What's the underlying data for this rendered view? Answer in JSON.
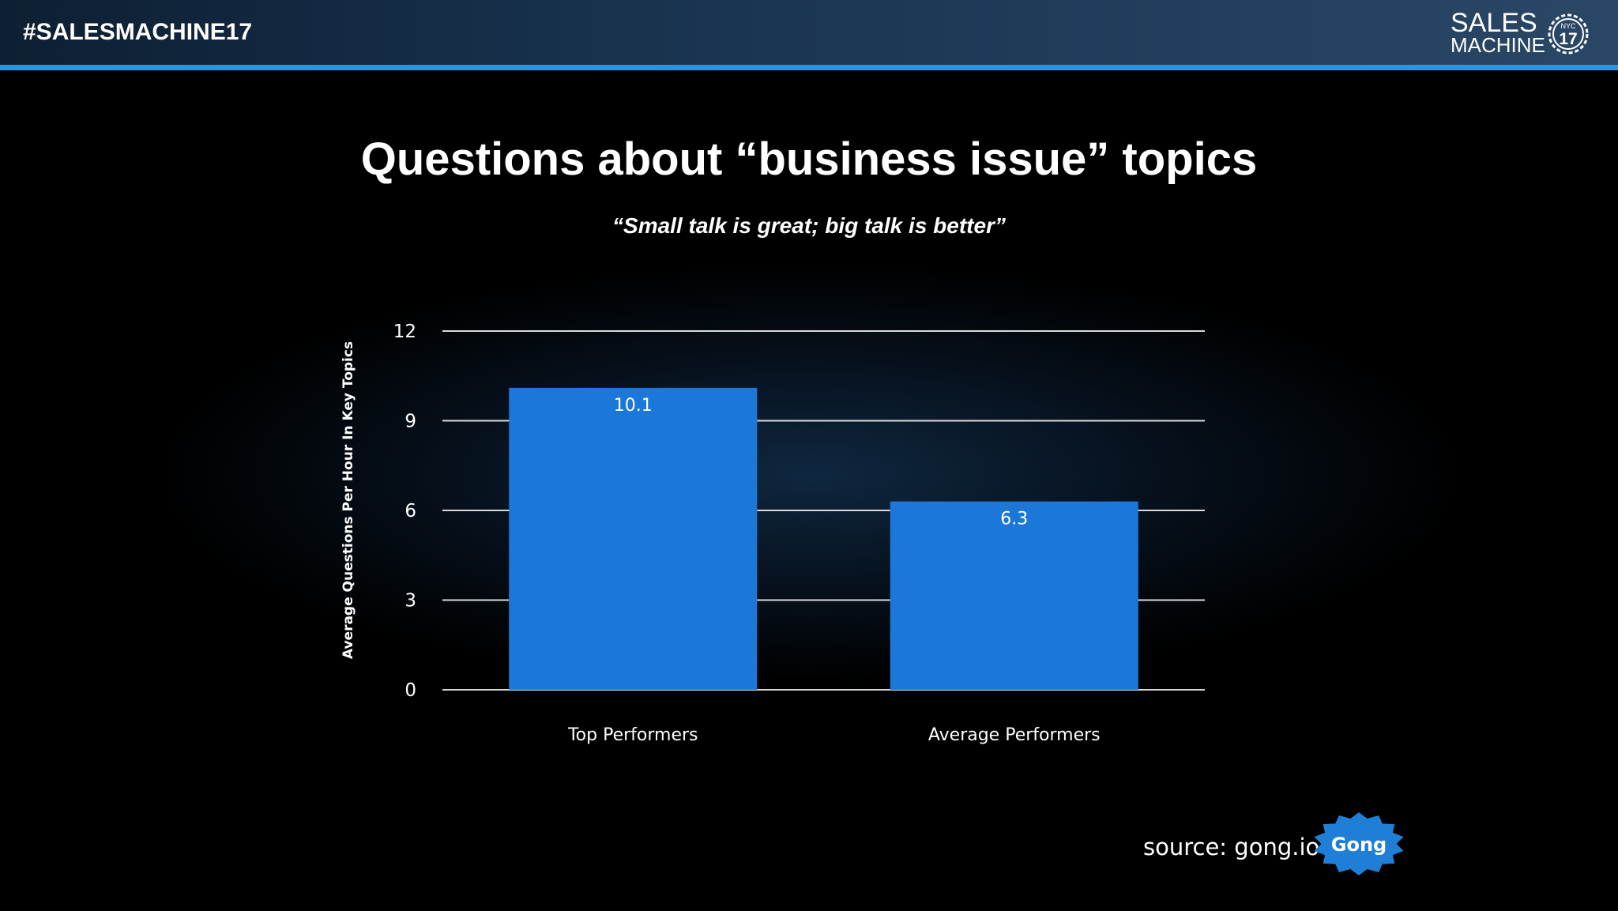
{
  "header": {
    "hashtag": "#SALESMACHINE17",
    "logo": {
      "word1": "SALES",
      "word2": "MACHINE",
      "badge_top": "NYC",
      "badge_num": "17"
    }
  },
  "slide": {
    "title": "Questions about “business issue” topics",
    "subtitle": "“Small talk is great; big talk is better”",
    "source": "source: gong.io",
    "brand": "Gong"
  },
  "colors": {
    "bar": "#1c78d8",
    "accent": "#1d9be0",
    "gridline": "#d9d9d9",
    "badge": "#1f7fd6"
  },
  "chart_data": {
    "type": "bar",
    "categories": [
      "Top Performers",
      "Average Performers"
    ],
    "values": [
      10.1,
      6.3
    ],
    "data_labels": [
      "10.1",
      "6.3"
    ],
    "ylabel": "Average Questions Per Hour In Key Topics",
    "xlabel": "",
    "ylim": [
      0,
      12
    ],
    "yticks": [
      0,
      3,
      6,
      9,
      12
    ],
    "grid": true,
    "legend": "none"
  }
}
